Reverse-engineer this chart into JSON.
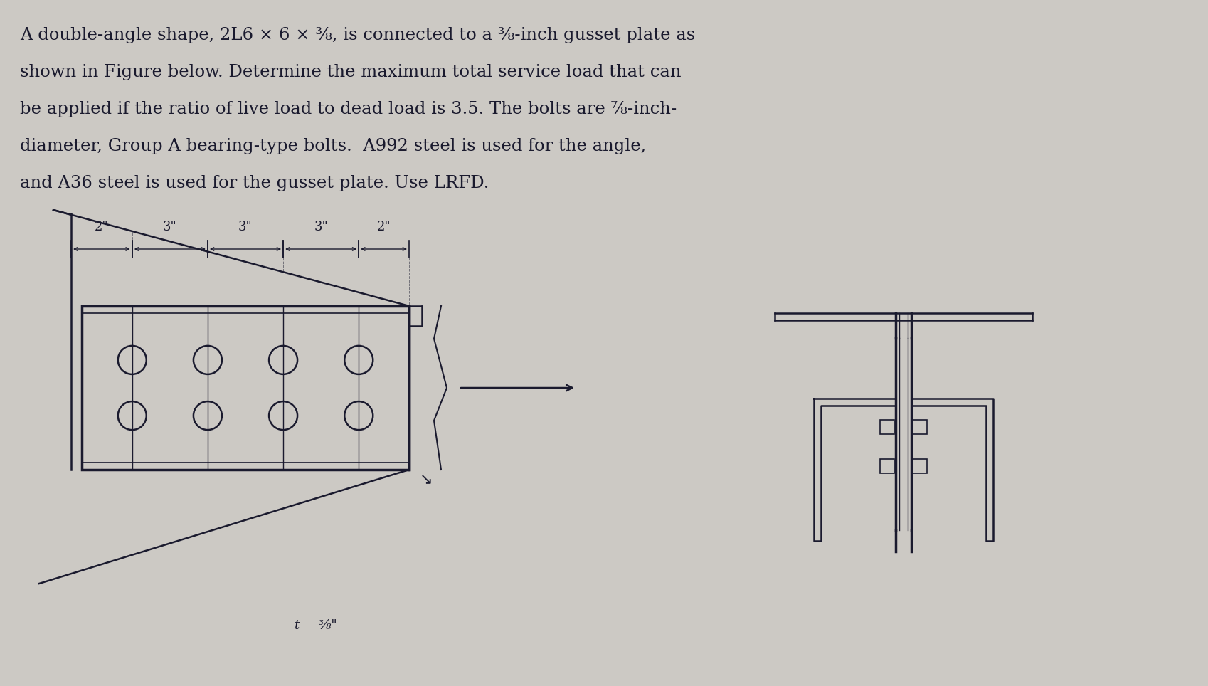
{
  "bg_color": "#ccc9c4",
  "text_color": "#1a1a2e",
  "title_lines": [
    "A double-angle shape, 2L6 × 6 × ³⁄₈, is connected to a ³⁄₈-inch gusset plate as",
    "shown in Figure below. Determine the maximum total service load that can",
    "be applied if the ratio of live load to dead load is 3.5. The bolts are ⁷⁄₈-inch-",
    "diameter, Group A bearing-type bolts.  A992 steel is used for the angle,",
    "and A36 steel is used for the gusset plate. Use LRFD."
  ],
  "dim_labels": [
    "2\"",
    "3\"",
    "3\"",
    "3\"",
    "2\""
  ],
  "t_label": "t = ³⁄₈\"",
  "lc": "#1a1a2e"
}
